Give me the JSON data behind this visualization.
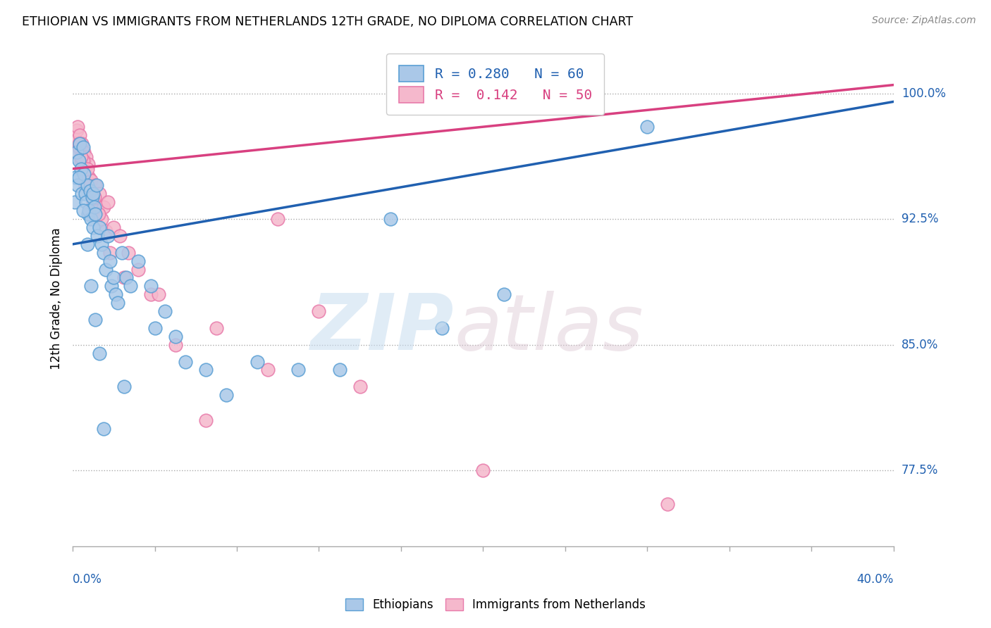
{
  "title": "ETHIOPIAN VS IMMIGRANTS FROM NETHERLANDS 12TH GRADE, NO DIPLOMA CORRELATION CHART",
  "source": "Source: ZipAtlas.com",
  "ylabel": "12th Grade, No Diploma",
  "xmin": 0.0,
  "xmax": 40.0,
  "ymin": 73.0,
  "ymax": 102.5,
  "yticks": [
    77.5,
    85.0,
    92.5,
    100.0
  ],
  "ytick_labels": [
    "77.5%",
    "85.0%",
    "92.5%",
    "100.0%"
  ],
  "legend_line1": "R = 0.280   N = 60",
  "legend_line2": "R =  0.142   N = 50",
  "blue_color": "#aac8e8",
  "pink_color": "#f5b8cc",
  "blue_edge_color": "#5a9fd4",
  "pink_edge_color": "#e87aaa",
  "blue_line_color": "#2060b0",
  "pink_line_color": "#d84080",
  "blue_text_color": "#2060b0",
  "pink_text_color": "#d84080",
  "blue_line_x0": 0.0,
  "blue_line_y0": 91.0,
  "blue_line_x1": 40.0,
  "blue_line_y1": 99.5,
  "pink_line_x0": 0.0,
  "pink_line_y0": 95.5,
  "pink_line_x1": 40.0,
  "pink_line_y1": 100.5,
  "blue_scatter_x": [
    0.1,
    0.15,
    0.2,
    0.25,
    0.3,
    0.35,
    0.4,
    0.45,
    0.5,
    0.55,
    0.6,
    0.65,
    0.7,
    0.75,
    0.8,
    0.85,
    0.9,
    0.95,
    1.0,
    1.0,
    1.05,
    1.1,
    1.15,
    1.2,
    1.3,
    1.4,
    1.5,
    1.6,
    1.7,
    1.8,
    1.9,
    2.0,
    2.1,
    2.2,
    2.4,
    2.6,
    2.8,
    3.2,
    3.8,
    4.5,
    5.0,
    5.5,
    6.5,
    7.5,
    9.0,
    11.0,
    13.0,
    15.5,
    18.0,
    21.0,
    0.3,
    0.5,
    0.7,
    0.9,
    1.1,
    1.3,
    1.5,
    2.5,
    4.0,
    28.0
  ],
  "blue_scatter_y": [
    93.5,
    95.0,
    96.5,
    94.5,
    96.0,
    97.0,
    95.5,
    94.0,
    96.8,
    95.2,
    94.0,
    93.5,
    94.5,
    92.8,
    93.0,
    94.2,
    92.5,
    93.8,
    92.0,
    94.0,
    93.2,
    92.8,
    94.5,
    91.5,
    92.0,
    91.0,
    90.5,
    89.5,
    91.5,
    90.0,
    88.5,
    89.0,
    88.0,
    87.5,
    90.5,
    89.0,
    88.5,
    90.0,
    88.5,
    87.0,
    85.5,
    84.0,
    83.5,
    82.0,
    84.0,
    83.5,
    83.5,
    92.5,
    86.0,
    88.0,
    95.0,
    93.0,
    91.0,
    88.5,
    86.5,
    84.5,
    80.0,
    82.5,
    86.0,
    98.0
  ],
  "pink_scatter_x": [
    0.1,
    0.15,
    0.2,
    0.25,
    0.3,
    0.35,
    0.4,
    0.45,
    0.5,
    0.55,
    0.6,
    0.65,
    0.7,
    0.75,
    0.8,
    0.85,
    0.9,
    1.0,
    1.1,
    1.2,
    1.3,
    1.4,
    1.5,
    1.6,
    1.7,
    2.0,
    2.3,
    2.7,
    3.2,
    3.8,
    5.0,
    7.0,
    9.5,
    12.0,
    0.3,
    0.5,
    0.7,
    0.9,
    1.05,
    1.25,
    1.8,
    2.5,
    4.2,
    6.5,
    10.0,
    14.0,
    20.0,
    29.0,
    0.4,
    0.6
  ],
  "pink_scatter_y": [
    96.5,
    97.2,
    97.8,
    98.0,
    96.8,
    97.5,
    96.0,
    97.0,
    95.5,
    96.5,
    95.0,
    96.2,
    94.5,
    95.8,
    95.0,
    94.2,
    94.8,
    93.5,
    94.5,
    93.0,
    94.0,
    92.5,
    93.2,
    91.8,
    93.5,
    92.0,
    91.5,
    90.5,
    89.5,
    88.0,
    85.0,
    86.0,
    83.5,
    87.0,
    97.0,
    96.0,
    95.5,
    94.0,
    93.8,
    92.8,
    90.5,
    89.0,
    88.0,
    80.5,
    92.5,
    82.5,
    77.5,
    75.5,
    96.2,
    94.5
  ]
}
